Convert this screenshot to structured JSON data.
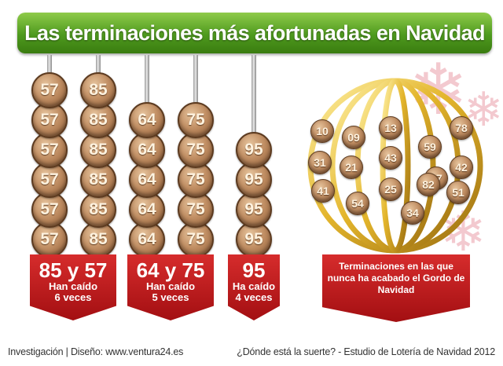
{
  "title": "Las terminaciones más afortunadas en Navidad",
  "groups": [
    {
      "columns": [
        {
          "number": "57",
          "count": 6
        },
        {
          "number": "85",
          "count": 6
        }
      ],
      "label": {
        "numbers": "85 y 57",
        "line1": "Han caído",
        "line2": "6 veces"
      }
    },
    {
      "columns": [
        {
          "number": "64",
          "count": 5
        },
        {
          "number": "75",
          "count": 5
        }
      ],
      "label": {
        "numbers": "64 y 75",
        "line1": "Han caído",
        "line2": "5 veces"
      }
    },
    {
      "columns": [
        {
          "number": "95",
          "count": 4
        }
      ],
      "label": {
        "numbers": "95",
        "line1": "Ha caído",
        "line2": "4 veces"
      }
    }
  ],
  "never": {
    "numbers": [
      "10",
      "09",
      "13",
      "59",
      "78",
      "31",
      "21",
      "43",
      "67",
      "42",
      "41",
      "25",
      "82",
      "51",
      "54",
      "34"
    ],
    "label": "Terminaciones en las que nunca ha acabado el Gordo de Navidad"
  },
  "footer": {
    "left": "Investigación | Diseño:  www.ventura24.es",
    "right": "¿Dónde está la suerte? - Estudio de Lotería de Navidad 2012"
  },
  "colors": {
    "banner": "#4e9a1e",
    "tag": "#b81a1d",
    "ball": "#b07a4f",
    "gold": "#d8b02a"
  }
}
